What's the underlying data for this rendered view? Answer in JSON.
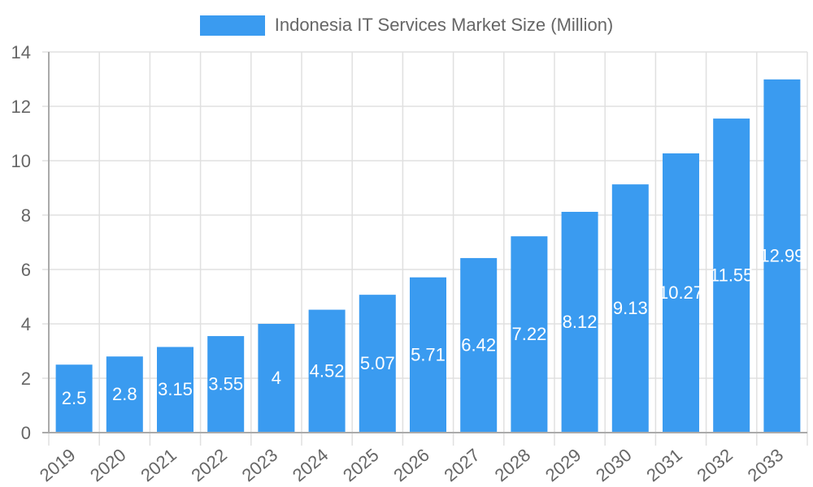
{
  "chart_data": {
    "type": "bar",
    "title": "",
    "legend": [
      "Indonesia IT Services Market Size (Million)"
    ],
    "legend_position": "top",
    "xlabel": "",
    "ylabel": "",
    "categories": [
      "2019",
      "2020",
      "2021",
      "2022",
      "2023",
      "2024",
      "2025",
      "2026",
      "2027",
      "2028",
      "2029",
      "2030",
      "2031",
      "2032",
      "2033"
    ],
    "series": [
      {
        "name": "Indonesia IT Services Market Size (Million)",
        "values": [
          2.5,
          2.8,
          3.15,
          3.55,
          4,
          4.52,
          5.07,
          5.71,
          6.42,
          7.22,
          8.12,
          9.13,
          10.27,
          11.55,
          12.99
        ],
        "color": "#3a9bf0"
      }
    ],
    "data_labels": [
      "2.5",
      "2.8",
      "3.15",
      "3.55",
      "4",
      "4.52",
      "5.07",
      "5.71",
      "6.42",
      "7.22",
      "8.12",
      "9.13",
      "10.27",
      "11.55",
      "12.99"
    ],
    "ylim": [
      0,
      14
    ],
    "yticks": [
      0,
      2,
      4,
      6,
      8,
      10,
      12,
      14
    ],
    "grid": true
  },
  "colors": {
    "bar": "#3a9bf0",
    "grid": "#e0e0e0",
    "axis": "#aaaaaa",
    "tick_text": "#666666",
    "data_label": "#ffffff"
  }
}
